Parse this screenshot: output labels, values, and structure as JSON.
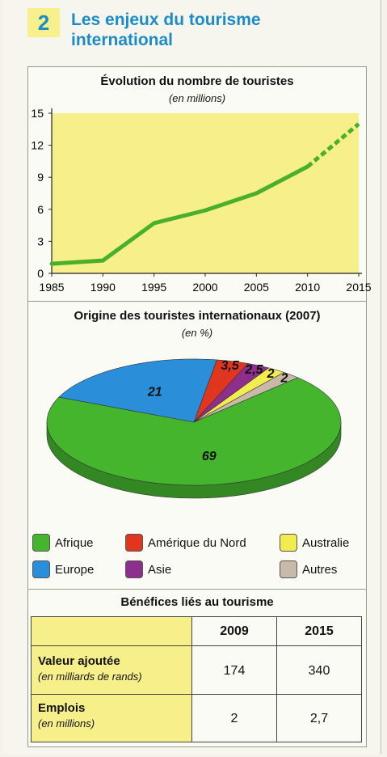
{
  "header": {
    "number": "2",
    "title": "Les enjeux du tourisme international"
  },
  "colors": {
    "accent_blue": "#1c8cc9",
    "panel_yellow": "#f6ef8a",
    "line_green": "#4ab02c"
  },
  "chart_data": [
    {
      "type": "line",
      "title": "Évolution du nombre de touristes",
      "subtitle": "(en millions)",
      "x": [
        1985,
        1990,
        1995,
        2000,
        2005,
        2010,
        2015
      ],
      "series": [
        {
          "values": [
            0.9,
            1.2,
            4.7,
            5.9,
            7.5,
            10.0,
            14.0
          ]
        }
      ],
      "xticks": [
        "1985",
        "1990",
        "1995",
        "2000",
        "2005",
        "2010",
        "2015"
      ],
      "yticks": [
        "0",
        "3",
        "6",
        "9",
        "12",
        "15"
      ],
      "ylim": [
        0,
        15
      ],
      "xlim": [
        1985,
        2015
      ],
      "grid": false,
      "dashed_from": 2010
    },
    {
      "type": "pie",
      "title": "Origine des touristes internationaux (2007)",
      "subtitle": "(en %)",
      "slices": [
        {
          "label": "Afrique",
          "value": 69,
          "color": "#45b52e"
        },
        {
          "label": "Europe",
          "value": 21,
          "color": "#2a8fd8"
        },
        {
          "label": "Amérique du Nord",
          "value": 3.5,
          "color": "#e0361f",
          "label_text": "3,5"
        },
        {
          "label": "Asie",
          "value": 2.5,
          "color": "#8e2f8d",
          "label_text": "2,5"
        },
        {
          "label": "Australie",
          "value": 2,
          "color": "#f3ec4f",
          "label_text": "2"
        },
        {
          "label": "Autres",
          "value": 2,
          "color": "#c9b9a8",
          "label_text": "2"
        }
      ]
    }
  ],
  "legend": [
    {
      "label": "Afrique",
      "color": "#45b52e"
    },
    {
      "label": "Amérique du Nord",
      "color": "#e0361f"
    },
    {
      "label": "Australie",
      "color": "#f3ec4f"
    },
    {
      "label": "Europe",
      "color": "#2a8fd8"
    },
    {
      "label": "Asie",
      "color": "#8e2f8d"
    },
    {
      "label": "Autres",
      "color": "#c9b9a8"
    }
  ],
  "table": {
    "title": "Bénéfices liés au tourisme",
    "columns": [
      "2009",
      "2015"
    ],
    "rows": [
      {
        "label": "Valeur ajoutée",
        "sublabel": "(en milliards de rands)",
        "values": [
          "174",
          "340"
        ]
      },
      {
        "label": "Emplois",
        "sublabel": "(en millions)",
        "values": [
          "2",
          "2,7"
        ]
      }
    ]
  }
}
